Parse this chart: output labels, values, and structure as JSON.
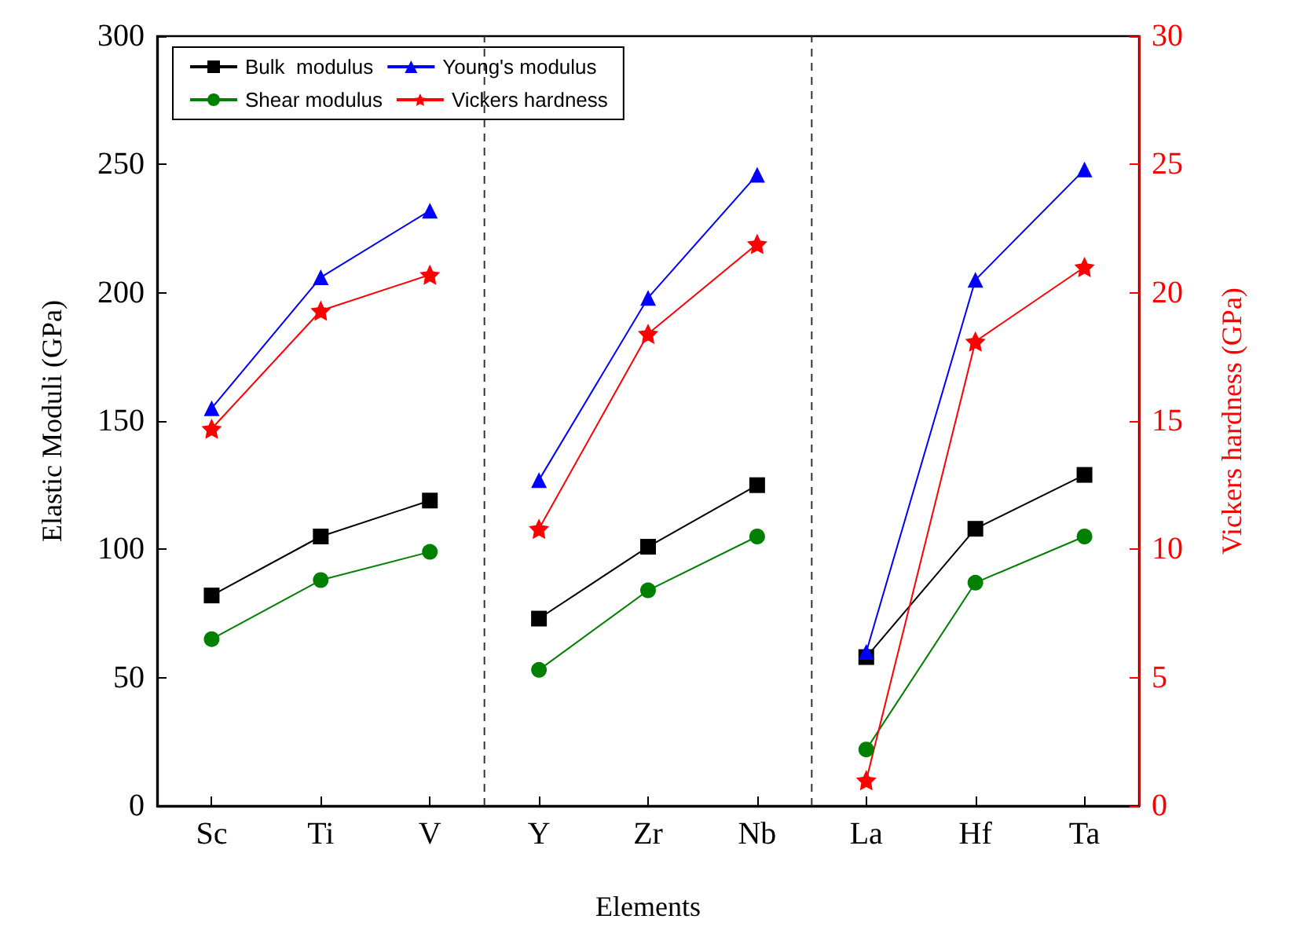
{
  "chart_data": {
    "type": "line",
    "xlabel": "Elements",
    "ylabel": "Elastic Moduli (GPa)",
    "y2label": "Vickers hardness (GPa)",
    "categories": [
      "Sc",
      "Ti",
      "V",
      "Y",
      "Zr",
      "Nb",
      "La",
      "Hf",
      "Ta"
    ],
    "ylim": [
      0,
      300
    ],
    "yticks": [
      0,
      50,
      100,
      150,
      200,
      250,
      300
    ],
    "y2lim": [
      0,
      30
    ],
    "y2ticks": [
      0,
      5,
      10,
      15,
      20,
      25,
      30
    ],
    "series": [
      {
        "name": "Bulk  modulus",
        "color": "#000000",
        "marker": "square",
        "values": [
          82,
          105,
          119,
          73,
          101,
          125,
          58,
          108,
          129
        ]
      },
      {
        "name": "Young's modulus",
        "color": "#0000ff",
        "marker": "triangle",
        "values": [
          155,
          206,
          232,
          127,
          198,
          246,
          60,
          205,
          248
        ]
      },
      {
        "name": "Shear modulus",
        "color": "#008000",
        "marker": "circle",
        "values": [
          65,
          88,
          99,
          53,
          84,
          105,
          22,
          87,
          105
        ]
      },
      {
        "name": "Vickers hardness",
        "color": "#ff0000",
        "marker": "star",
        "axis": "y2",
        "values": [
          14.7,
          19.3,
          20.7,
          10.8,
          18.4,
          21.9,
          1.0,
          18.1,
          21.0
        ]
      }
    ],
    "legend": "top left"
  }
}
